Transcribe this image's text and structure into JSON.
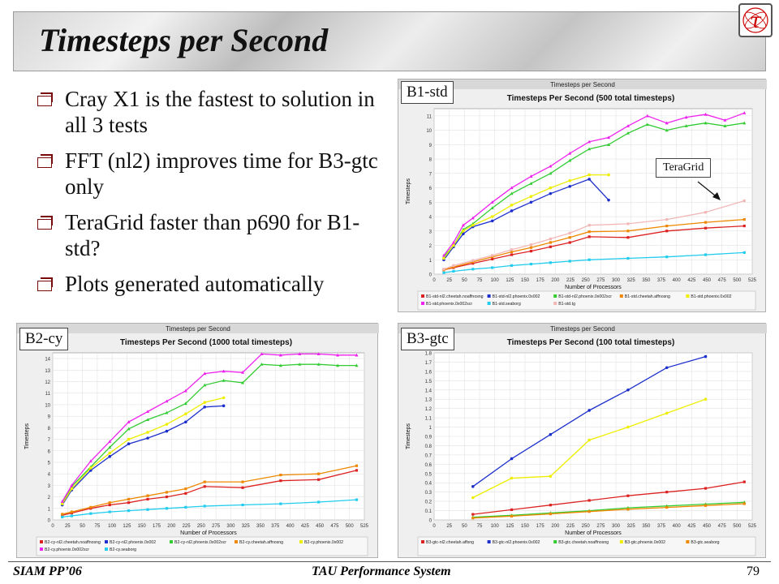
{
  "slide": {
    "title": "Timesteps per Second",
    "bullets": [
      "Cray X1 is the fastest to solution in all 3 tests",
      "FFT (nl2) improves time for B3-gtc only",
      "TeraGrid faster than p690  for B1-std?",
      "Plots generated automatically"
    ],
    "footer_left": "SIAM PP’06",
    "footer_center": "TAU Performance System",
    "page_number": "79",
    "tags": {
      "b1": "B1-std",
      "b2": "B2-cy",
      "b3": "B3-gtc"
    },
    "callout": "TeraGrid",
    "logo_glyph": "τ"
  },
  "chart_data": [
    {
      "id": "b1",
      "type": "line",
      "window_title": "Timesteps per Second",
      "title": "Timesteps Per Second (500 total timesteps)",
      "xlabel": "Number of Processors",
      "ylabel": "Timesteps",
      "xlim": [
        0,
        525
      ],
      "ylim": [
        0,
        11.5
      ],
      "xticks": [
        0,
        25,
        50,
        75,
        100,
        125,
        150,
        175,
        200,
        225,
        250,
        275,
        300,
        325,
        350,
        375,
        400,
        425,
        450,
        475,
        500,
        525
      ],
      "yticks": [
        0,
        1,
        2,
        3,
        4,
        5,
        6,
        7,
        8,
        9,
        10,
        11
      ],
      "grid": true,
      "legend_placement": "bottom",
      "series": [
        {
          "name": "B1-std-nl2.cheetah.noaffnosng",
          "color": "#dd2222",
          "marker": "square",
          "x": [
            16,
            32,
            64,
            96,
            128,
            160,
            192,
            224,
            256,
            320,
            384,
            448,
            512
          ],
          "y": [
            0.3,
            0.45,
            0.75,
            1.05,
            1.35,
            1.6,
            1.9,
            2.2,
            2.6,
            2.55,
            3.0,
            3.2,
            3.35
          ]
        },
        {
          "name": "B1-std-nl2.phoenix.0x002",
          "color": "#1c2fcc",
          "marker": "circle",
          "x": [
            16,
            32,
            48,
            64,
            96,
            128,
            160,
            192,
            224,
            256,
            288
          ],
          "y": [
            1.0,
            1.9,
            2.8,
            3.3,
            3.7,
            4.4,
            5.0,
            5.6,
            6.1,
            6.6,
            5.15
          ]
        },
        {
          "name": "B1-std-nl2.phoenix.0x002scr",
          "color": "#33cc33",
          "marker": "triangle",
          "x": [
            16,
            32,
            48,
            64,
            96,
            128,
            160,
            192,
            224,
            256,
            288,
            320,
            352,
            384,
            416,
            448,
            480,
            512
          ],
          "y": [
            1.2,
            2.0,
            3.1,
            3.5,
            4.6,
            5.6,
            6.3,
            7.0,
            7.9,
            8.7,
            9.0,
            9.8,
            10.4,
            10.0,
            10.3,
            10.5,
            10.3,
            10.5
          ]
        },
        {
          "name": "B1-std.cheetah.affnosng",
          "color": "#ee8800",
          "marker": "square",
          "x": [
            16,
            32,
            64,
            96,
            128,
            160,
            192,
            224,
            256,
            320,
            384,
            448,
            512
          ],
          "y": [
            0.3,
            0.5,
            0.85,
            1.2,
            1.55,
            1.85,
            2.2,
            2.55,
            2.95,
            3.0,
            3.35,
            3.6,
            3.8
          ]
        },
        {
          "name": "B1-std.phoenix.0x002",
          "color": "#eeee00",
          "marker": "circle",
          "x": [
            16,
            32,
            48,
            64,
            96,
            128,
            160,
            192,
            224,
            256,
            288
          ],
          "y": [
            1.1,
            2.0,
            3.0,
            3.4,
            4.0,
            4.8,
            5.4,
            6.0,
            6.5,
            6.9,
            6.9
          ]
        },
        {
          "name": "B1-std.phoenix.0x002scr",
          "color": "#ee22ee",
          "marker": "triangle",
          "x": [
            16,
            32,
            48,
            64,
            96,
            128,
            160,
            192,
            224,
            256,
            288,
            320,
            352,
            384,
            416,
            448,
            480,
            512
          ],
          "y": [
            1.3,
            2.2,
            3.4,
            3.9,
            5.0,
            6.0,
            6.8,
            7.5,
            8.4,
            9.2,
            9.5,
            10.3,
            11.0,
            10.5,
            10.9,
            11.1,
            10.7,
            11.2
          ]
        },
        {
          "name": "B1-std.seaborg",
          "color": "#22ccee",
          "marker": "square",
          "x": [
            16,
            32,
            64,
            96,
            128,
            160,
            192,
            224,
            256,
            320,
            384,
            448,
            512
          ],
          "y": [
            0.1,
            0.2,
            0.35,
            0.45,
            0.6,
            0.7,
            0.8,
            0.9,
            1.0,
            1.1,
            1.2,
            1.35,
            1.5
          ]
        },
        {
          "name": "B1-std.tg",
          "color": "#f2b8b8",
          "marker": "square",
          "x": [
            16,
            32,
            64,
            96,
            128,
            160,
            192,
            224,
            256,
            320,
            384,
            448,
            512
          ],
          "y": [
            0.35,
            0.6,
            0.95,
            1.3,
            1.7,
            2.05,
            2.45,
            2.85,
            3.4,
            3.5,
            3.8,
            4.3,
            5.1
          ]
        }
      ]
    },
    {
      "id": "b2",
      "type": "line",
      "window_title": "Timesteps per Second",
      "title": "Timesteps Per Second (1000 total timesteps)",
      "xlabel": "Number of Processors",
      "ylabel": "Timesteps",
      "xlim": [
        0,
        525
      ],
      "ylim": [
        0,
        14.5
      ],
      "xticks": [
        0,
        25,
        50,
        75,
        100,
        125,
        150,
        175,
        200,
        225,
        250,
        275,
        300,
        325,
        350,
        375,
        400,
        425,
        450,
        475,
        500,
        525
      ],
      "yticks": [
        0,
        1,
        2,
        3,
        4,
        5,
        6,
        7,
        8,
        9,
        10,
        11,
        12,
        13,
        14
      ],
      "grid": true,
      "legend_placement": "bottom",
      "series": [
        {
          "name": "B2-cy-nl2.cheetah.noaffnosng",
          "color": "#dd2222",
          "marker": "square",
          "x": [
            16,
            32,
            64,
            96,
            128,
            160,
            192,
            224,
            256,
            320,
            384,
            448,
            512
          ],
          "y": [
            0.4,
            0.6,
            1.0,
            1.3,
            1.5,
            1.8,
            2.0,
            2.3,
            2.9,
            2.8,
            3.4,
            3.5,
            4.3
          ]
        },
        {
          "name": "B2-cy-nl2.phoenix.0x002",
          "color": "#1c2fcc",
          "marker": "circle",
          "x": [
            16,
            32,
            64,
            96,
            128,
            160,
            192,
            224,
            256,
            288
          ],
          "y": [
            1.3,
            2.6,
            4.3,
            5.5,
            6.6,
            7.1,
            7.7,
            8.5,
            9.8,
            9.9
          ]
        },
        {
          "name": "B2-cy-nl2.phoenix.0x002scr",
          "color": "#33cc33",
          "marker": "triangle",
          "x": [
            16,
            32,
            64,
            96,
            128,
            160,
            192,
            224,
            256,
            288,
            320,
            352,
            384,
            416,
            448,
            480,
            512
          ],
          "y": [
            1.5,
            2.9,
            4.6,
            6.3,
            7.9,
            8.7,
            9.3,
            10.1,
            11.7,
            12.1,
            11.9,
            13.5,
            13.4,
            13.5,
            13.5,
            13.4,
            13.4
          ]
        },
        {
          "name": "B2-cy.cheetah.affnosng",
          "color": "#ee8800",
          "marker": "square",
          "x": [
            16,
            32,
            64,
            96,
            128,
            160,
            192,
            224,
            256,
            320,
            384,
            448,
            512
          ],
          "y": [
            0.5,
            0.7,
            1.1,
            1.5,
            1.8,
            2.1,
            2.4,
            2.7,
            3.3,
            3.3,
            3.9,
            4.0,
            4.7
          ]
        },
        {
          "name": "B2-cy.phoenix.0x002",
          "color": "#eeee00",
          "marker": "circle",
          "x": [
            16,
            32,
            64,
            96,
            128,
            160,
            192,
            224,
            256,
            288
          ],
          "y": [
            1.4,
            2.7,
            4.5,
            5.8,
            7.0,
            7.6,
            8.3,
            9.2,
            10.2,
            10.6
          ]
        },
        {
          "name": "B2-cy.phoenix.0x002scr",
          "color": "#ee22ee",
          "marker": "triangle",
          "x": [
            16,
            32,
            64,
            96,
            128,
            160,
            192,
            224,
            256,
            288,
            320,
            352,
            384,
            416,
            448,
            480,
            512
          ],
          "y": [
            1.6,
            3.0,
            5.1,
            6.8,
            8.5,
            9.4,
            10.3,
            11.2,
            12.7,
            12.9,
            12.8,
            14.4,
            14.3,
            14.4,
            14.4,
            14.3,
            14.3
          ]
        },
        {
          "name": "B2-cy.seaborg",
          "color": "#22ccee",
          "marker": "square",
          "x": [
            16,
            32,
            64,
            96,
            128,
            160,
            192,
            224,
            256,
            320,
            384,
            448,
            512
          ],
          "y": [
            0.25,
            0.35,
            0.55,
            0.7,
            0.8,
            0.9,
            1.0,
            1.1,
            1.2,
            1.3,
            1.4,
            1.55,
            1.75
          ]
        }
      ]
    },
    {
      "id": "b3",
      "type": "line",
      "window_title": "Timesteps per Second",
      "title": "Timesteps Per Second (100 total timesteps)",
      "xlabel": "Number of Processors",
      "ylabel": "Timesteps",
      "xlim": [
        0,
        525
      ],
      "ylim": [
        0,
        1.8
      ],
      "xticks": [
        0,
        25,
        50,
        75,
        100,
        125,
        150,
        175,
        200,
        225,
        250,
        275,
        300,
        325,
        350,
        375,
        400,
        425,
        450,
        475,
        500,
        525
      ],
      "yticks": [
        0,
        0.1,
        0.2,
        0.3,
        0.4,
        0.5,
        0.6,
        0.7,
        0.8,
        0.9,
        1.0,
        1.1,
        1.2,
        1.3,
        1.4,
        1.5,
        1.6,
        1.7,
        1.8
      ],
      "grid": true,
      "legend_placement": "bottom",
      "series": [
        {
          "name": "B3-gtc-nl2.cheetah.affsng",
          "color": "#dd2222",
          "marker": "square",
          "x": [
            64,
            128,
            192,
            256,
            320,
            384,
            448,
            512
          ],
          "y": [
            0.06,
            0.11,
            0.16,
            0.21,
            0.26,
            0.3,
            0.34,
            0.41
          ]
        },
        {
          "name": "B3-gtc-nl2.phoenix.0x002",
          "color": "#1c2fcc",
          "marker": "circle",
          "x": [
            64,
            128,
            192,
            256,
            320,
            384,
            448
          ],
          "y": [
            0.36,
            0.66,
            0.92,
            1.18,
            1.4,
            1.64,
            1.76
          ]
        },
        {
          "name": "B3-gtc.cheetah.noaffnosng",
          "color": "#33cc33",
          "marker": "triangle",
          "x": [
            64,
            128,
            192,
            256,
            320,
            384,
            448,
            512
          ],
          "y": [
            0.03,
            0.05,
            0.075,
            0.1,
            0.13,
            0.15,
            0.17,
            0.19
          ]
        },
        {
          "name": "B3-gtc.phoenix.0x002",
          "color": "#eeee00",
          "marker": "circle",
          "x": [
            64,
            128,
            192,
            256,
            320,
            384,
            448
          ],
          "y": [
            0.24,
            0.45,
            0.47,
            0.86,
            1.0,
            1.15,
            1.3
          ]
        },
        {
          "name": "B3-gtc.seaborg",
          "color": "#ee8800",
          "marker": "square",
          "x": [
            64,
            128,
            192,
            256,
            320,
            384,
            448,
            512
          ],
          "y": [
            0.02,
            0.04,
            0.065,
            0.09,
            0.115,
            0.135,
            0.155,
            0.175
          ]
        }
      ]
    }
  ]
}
